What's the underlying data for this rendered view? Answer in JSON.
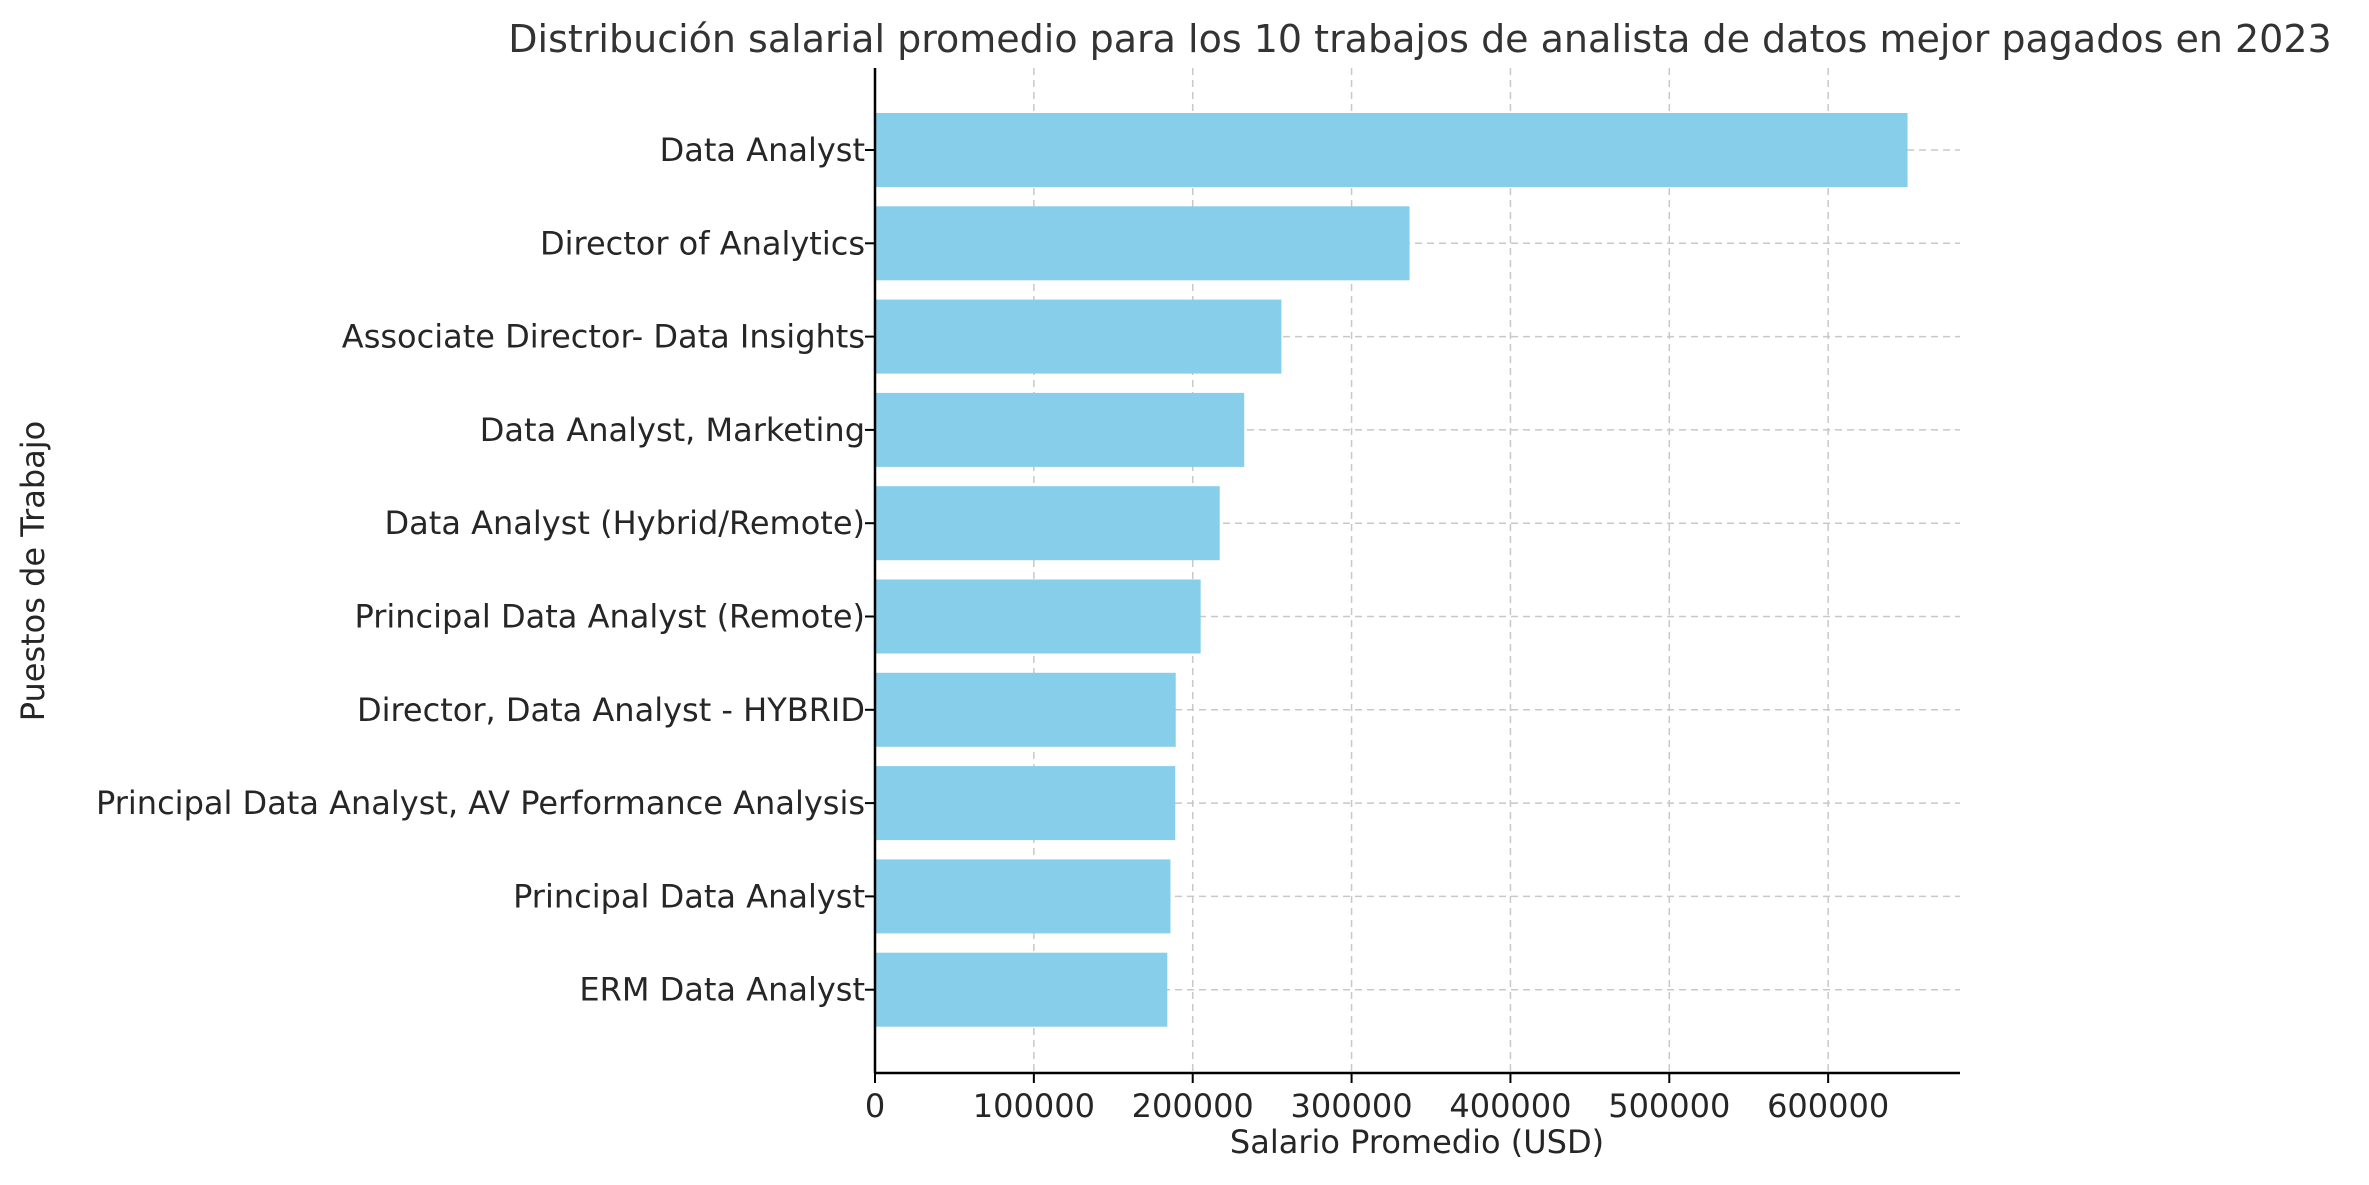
{
  "chart_data": {
    "type": "bar",
    "orientation": "horizontal",
    "title": "Distribución salarial promedio para los 10 trabajos de analista de datos mejor pagados en 2023",
    "xlabel": "Salario Promedio (USD)",
    "ylabel": "Puestos de Trabajo",
    "categories": [
      "Data Analyst",
      "Director of Analytics",
      "Associate Director- Data Insights",
      "Data Analyst, Marketing",
      "Data Analyst (Hybrid/Remote)",
      "Principal Data Analyst (Remote)",
      "Director, Data Analyst - HYBRID",
      "Principal Data Analyst, AV Performance Analysis",
      "Principal Data Analyst",
      "ERM Data Analyst"
    ],
    "values": [
      650000,
      336500,
      255830,
      232423,
      217000,
      205000,
      189309,
      189000,
      186000,
      184000
    ],
    "xlim": [
      0,
      683000
    ],
    "xticks": [
      0,
      100000,
      200000,
      300000,
      400000,
      500000,
      600000
    ],
    "xtick_labels": [
      "0",
      "100000",
      "200000",
      "300000",
      "400000",
      "500000",
      "600000"
    ],
    "grid": true,
    "bar_color": "#87CEEB"
  }
}
